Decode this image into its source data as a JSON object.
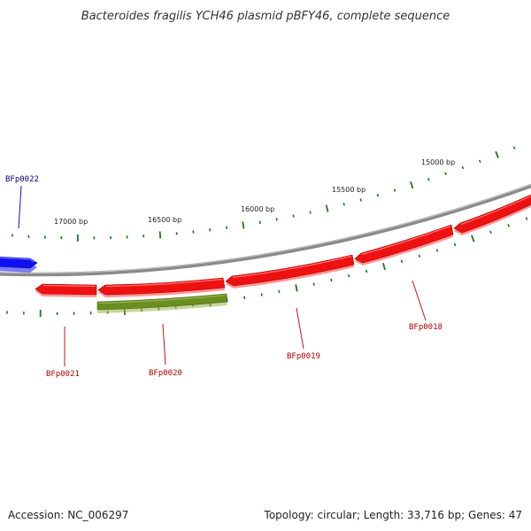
{
  "title": "Bacteroides fragilis YCH46 plasmid pBFY46, complete sequence",
  "footer": {
    "accession": "Accession: NC_006297",
    "summary": "Topology: circular; Length: 33,716 bp; Genes: 47"
  },
  "colors": {
    "backbone": "#808080",
    "forward_gene": "#1010ee",
    "reverse_gene": "#ee1111",
    "other_feature": "#6b8e23",
    "tick": "#1a7a1a",
    "forward_label": "#000080",
    "reverse_label": "#b00000"
  },
  "ticks": {
    "labels": [
      "15000 bp",
      "15500 bp",
      "16000 bp",
      "16500 bp",
      "17000 bp"
    ]
  },
  "genes": [
    {
      "name": "BFp0018",
      "strand": "reverse"
    },
    {
      "name": "BFp0019",
      "strand": "reverse"
    },
    {
      "name": "BFp0020",
      "strand": "reverse"
    },
    {
      "name": "BFp0021",
      "strand": "reverse"
    },
    {
      "name": "BFp0022",
      "strand": "forward"
    }
  ]
}
